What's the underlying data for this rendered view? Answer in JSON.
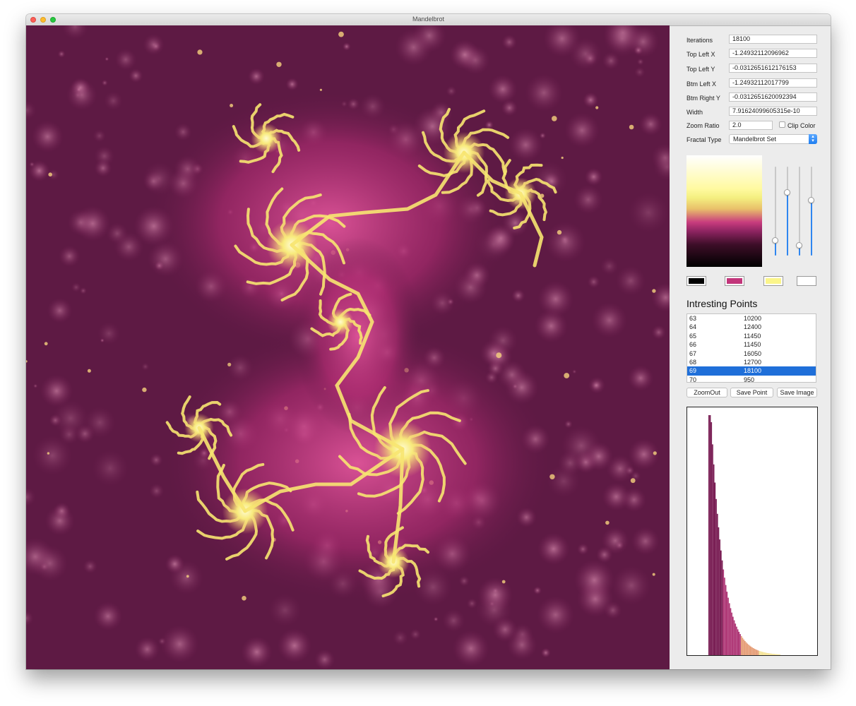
{
  "window": {
    "title": "Mandelbrot"
  },
  "form": {
    "iterations_label": "Iterations",
    "iterations_value": "18100",
    "top_left_x_label": "Top Left X",
    "top_left_x_value": "-1.24932112096962",
    "top_left_y_label": "Top Left Y",
    "top_left_y_value": "-0.0312651612176153",
    "btm_left_x_label": "Btm Left X",
    "btm_left_x_value": "-1.24932112017799",
    "btm_right_y_label": "Btm Right Y",
    "btm_right_y_value": "-0.0312651620092394",
    "width_label": "Width",
    "width_value": "7.91624099605315e-10",
    "zoom_ratio_label": "Zoom Ratio",
    "zoom_ratio_value": "2.0",
    "clip_color_label": "Clip Color",
    "clip_color_checked": false,
    "fractal_type_label": "Fractal Type",
    "fractal_type_value": "Mandelbrot Set"
  },
  "color_sliders": [
    0.17,
    0.71,
    0.11,
    0.62
  ],
  "swatches": [
    "#000000",
    "#c2357a",
    "#fbf58a",
    "#ffffff"
  ],
  "points": {
    "title": "Intresting Points",
    "rows": [
      {
        "id": "63",
        "iterations": "10200"
      },
      {
        "id": "64",
        "iterations": "12400"
      },
      {
        "id": "65",
        "iterations": "11450"
      },
      {
        "id": "66",
        "iterations": "11450"
      },
      {
        "id": "67",
        "iterations": "16050"
      },
      {
        "id": "68",
        "iterations": "12700"
      },
      {
        "id": "69",
        "iterations": "18100",
        "selected": true
      },
      {
        "id": "70",
        "iterations": "950"
      }
    ]
  },
  "buttons": {
    "zoom_out": "ZoomOut",
    "save_point": "Save Point",
    "save_image": "Save Image"
  }
}
